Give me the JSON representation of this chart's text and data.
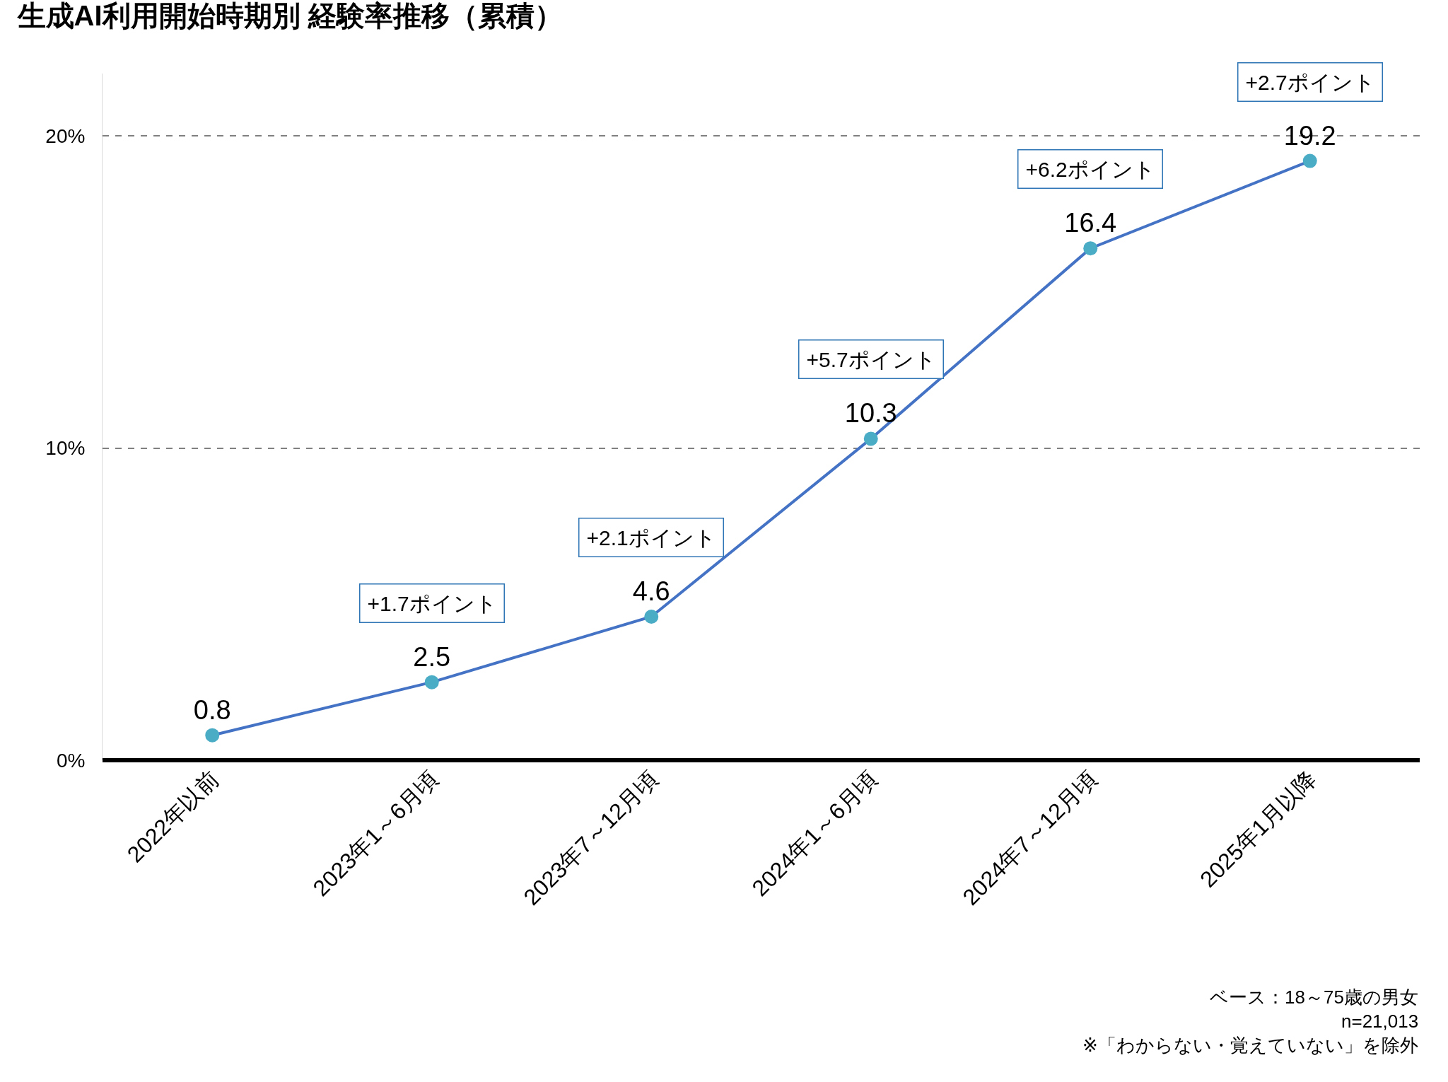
{
  "chart_data": {
    "type": "line",
    "title": "生成AI利用開始時期別 経験率推移（累積）",
    "categories": [
      "2022年以前",
      "2023年1～6月頃",
      "2023年7～12月頃",
      "2024年1～6月頃",
      "2024年7～12月頃",
      "2025年1月以降"
    ],
    "series": [
      {
        "color": "#4472c4",
        "colors": [
          "#4bacc6",
          "#4bacc6",
          "#4bacc6",
          "#4bacc6",
          "#4bacc6",
          "#4bacc6"
        ],
        "values": [
          0.8,
          2.5,
          4.6,
          10.3,
          16.4,
          19.2
        ]
      }
    ],
    "ylim": [
      0,
      22
    ],
    "yticks": [
      {
        "value": 0,
        "label": "0%"
      },
      {
        "value": 10,
        "label": "10%"
      },
      {
        "value": 20,
        "label": "20%"
      }
    ],
    "grid": "y",
    "marker": "circle",
    "line_style": "solid",
    "data_labels": true,
    "legend": false,
    "annotations": [
      "+1.7ポイント",
      "+2.1ポイント",
      "+5.7ポイント",
      "+6.2ポイント",
      "+2.7ポイント",
      "ベース：18～75歳の男女",
      "n=21,013",
      "※「わからない・覚えていない」を除外"
    ]
  }
}
